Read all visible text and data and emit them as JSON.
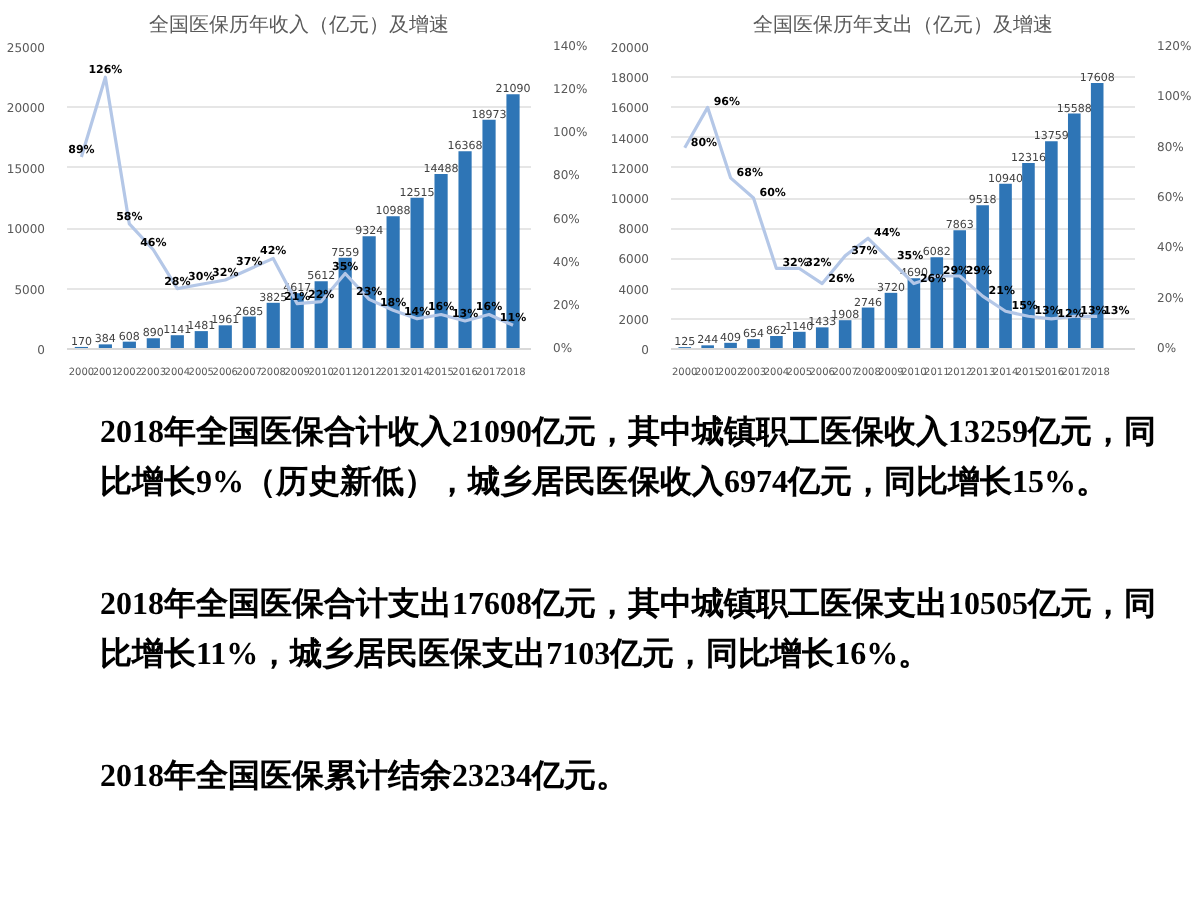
{
  "chart_data": [
    {
      "type": "bar",
      "title": "全国医保历年收入（亿元）及增速",
      "categories": [
        "2000",
        "2001",
        "2002",
        "2003",
        "2004",
        "2005",
        "2006",
        "2007",
        "2008",
        "2009",
        "2010",
        "2011",
        "2012",
        "2013",
        "2014",
        "2015",
        "2016",
        "2017",
        "2018"
      ],
      "series": [
        {
          "type": "bar",
          "color": "#2e75b6",
          "values": [
            170,
            384,
            608,
            890,
            1141,
            1481,
            1961,
            2685,
            3825,
            4617,
            5612,
            7559,
            9324,
            10988,
            12515,
            14488,
            16368,
            18973,
            21090
          ]
        },
        {
          "type": "line",
          "axis": "y2",
          "color": "#b4c7e7",
          "values": [
            89,
            126,
            58,
            46,
            28,
            30,
            32,
            37,
            42,
            21,
            22,
            35,
            23,
            18,
            14,
            16,
            13,
            16,
            11
          ],
          "value_labels": [
            "89%",
            "126%",
            "58%",
            "46%",
            "28%",
            "30%",
            "32%",
            "37%",
            "42%",
            "21%",
            "22%",
            "35%",
            "23%",
            "18%",
            "14%",
            "16%",
            "13%",
            "16%",
            "11%"
          ]
        }
      ],
      "ylim": [
        0,
        25000
      ],
      "yticks": [
        0,
        5000,
        10000,
        15000,
        20000,
        25000
      ],
      "y2lim": [
        0,
        140
      ],
      "y2ticks": [
        {
          "value": 0,
          "label": "0%"
        },
        {
          "value": 20,
          "label": "20%"
        },
        {
          "value": 40,
          "label": "40%"
        },
        {
          "value": 60,
          "label": "60%"
        },
        {
          "value": 80,
          "label": "80%"
        },
        {
          "value": 100,
          "label": "100%"
        },
        {
          "value": 120,
          "label": "120%"
        },
        {
          "value": 140,
          "label": "140%"
        }
      ],
      "grid": "y",
      "data_labels": true,
      "line_style": "solid"
    },
    {
      "type": "bar",
      "title": "全国医保历年支出（亿元）及增速",
      "categories": [
        "2000",
        "2001",
        "2002",
        "2003",
        "2004",
        "2005",
        "2006",
        "2007",
        "2008",
        "2009",
        "2010",
        "2011",
        "2012",
        "2013",
        "2014",
        "2015",
        "2016",
        "2017",
        "2018"
      ],
      "series": [
        {
          "type": "bar",
          "color": "#2e75b6",
          "values": [
            125,
            244,
            409,
            654,
            862,
            1140,
            1433,
            1908,
            2746,
            3720,
            4690,
            6082,
            7863,
            9518,
            10940,
            12316,
            13759,
            15588,
            17608
          ]
        },
        {
          "type": "line",
          "axis": "y2",
          "color": "#b4c7e7",
          "values": [
            80,
            96,
            68,
            60,
            32,
            32,
            26,
            37,
            44,
            35,
            26,
            29,
            29,
            21,
            15,
            13,
            12,
            13,
            13
          ],
          "value_labels": [
            "80%",
            "96%",
            "68%",
            "60%",
            "32%",
            "32%",
            "26%",
            "37%",
            "44%",
            "35%",
            "26%",
            "29%",
            "29%",
            "21%",
            "15%",
            "13%",
            "12%",
            "13%",
            "13%"
          ]
        }
      ],
      "ylim": [
        0,
        20000
      ],
      "yticks": [
        0,
        2000,
        4000,
        6000,
        8000,
        10000,
        12000,
        14000,
        16000,
        18000,
        20000
      ],
      "y2lim": [
        0,
        120
      ],
      "y2ticks": [
        {
          "value": 0,
          "label": "0%"
        },
        {
          "value": 20,
          "label": "20%"
        },
        {
          "value": 40,
          "label": "40%"
        },
        {
          "value": 60,
          "label": "60%"
        },
        {
          "value": 80,
          "label": "80%"
        },
        {
          "value": 100,
          "label": "100%"
        },
        {
          "value": 120,
          "label": "120%"
        }
      ],
      "grid": "y",
      "data_labels": true,
      "line_style": "solid"
    },
    {
      "type": "other",
      "annotations": [
        "2018年全国医保合计收入21090亿元，其中城镇职工医保收入13259亿元，同比增长9%（历史新低），城乡居民医保收入6974亿元，同比增长15%。",
        "2018年全国医保合计支出17608亿元，其中城镇职工医保支出10505亿元，同比增长11%，城乡居民医保支出7103亿元，同比增长16%。",
        "2018年全国医保累计结余23234亿元。"
      ]
    }
  ]
}
